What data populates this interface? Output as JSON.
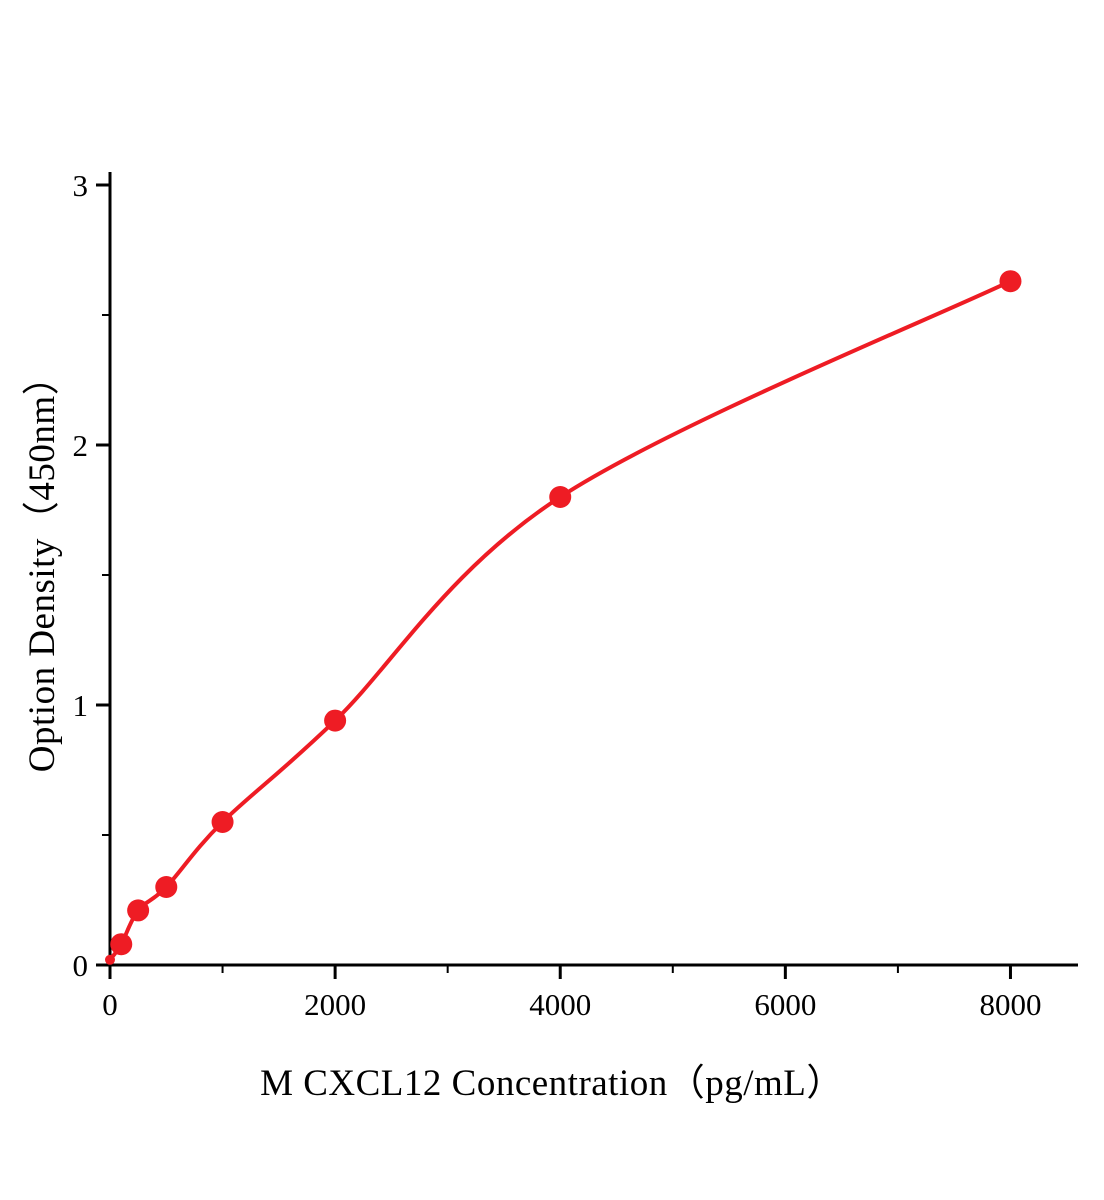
{
  "chart_data": {
    "type": "scatter",
    "title": "",
    "xlabel": "M CXCL12 Concentration（pg/mL）",
    "ylabel": "Option Density（450nm）",
    "x": [
      0,
      100,
      250,
      500,
      1000,
      2000,
      4000,
      8000
    ],
    "y": [
      0.02,
      0.08,
      0.21,
      0.3,
      0.55,
      0.94,
      1.8,
      2.63
    ],
    "fit_line": true,
    "xlim": [
      0,
      8600
    ],
    "ylim": [
      0,
      3.05
    ],
    "x_major_ticks": [
      0,
      2000,
      4000,
      6000,
      8000
    ],
    "x_minor_ticks": [
      1000,
      3000,
      5000,
      7000
    ],
    "y_major_ticks": [
      0,
      1,
      2,
      3
    ],
    "y_minor_ticks": [
      0.5,
      1.5,
      2.5
    ],
    "grid": "off",
    "legend": "none",
    "line_color": "#ee1c24",
    "marker_color": "#ee1c24",
    "axis_color": "#000000",
    "marker_radius": 11
  }
}
